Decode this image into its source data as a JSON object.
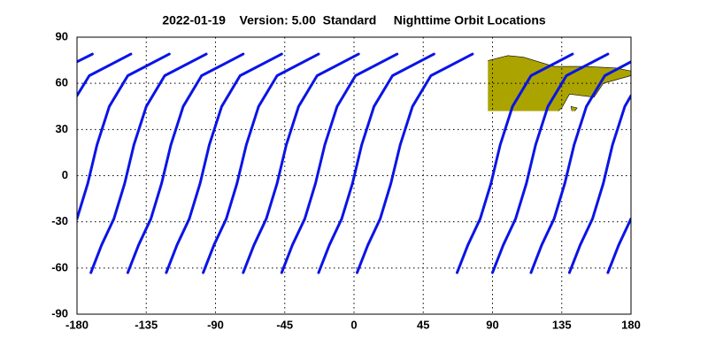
{
  "chart_data": {
    "type": "map",
    "title": "2022-01-19    Version: 5.00  Standard     Nighttime Orbit Locations",
    "xlim": [
      -180,
      180
    ],
    "ylim": [
      -90,
      90
    ],
    "xticks": [
      -180,
      -135,
      -90,
      -45,
      0,
      45,
      90,
      135,
      180
    ],
    "yticks": [
      -90,
      -60,
      -30,
      0,
      30,
      60,
      90
    ],
    "grid": true,
    "track_color": "#0a14e6",
    "land_color": "#aba400",
    "tracks": [
      {
        "x": [
          -171,
          -164,
          -156,
          -149,
          -143,
          -135,
          -123,
          -96
        ],
        "y": [
          -63,
          -45,
          -28,
          -5,
          20,
          45,
          65,
          79
        ]
      },
      {
        "x": [
          -147,
          -140,
          -132,
          -125,
          -119,
          -111,
          -99,
          -72
        ],
        "y": [
          -63,
          -45,
          -28,
          -5,
          20,
          45,
          65,
          79
        ]
      },
      {
        "x": [
          -122,
          -115,
          -107,
          -100,
          -94,
          -86,
          -74,
          -47
        ],
        "y": [
          -63,
          -45,
          -28,
          -5,
          20,
          45,
          65,
          79
        ]
      },
      {
        "x": [
          -98,
          -91,
          -83,
          -76,
          -70,
          -62,
          -50,
          -23
        ],
        "y": [
          -63,
          -45,
          -28,
          -5,
          20,
          45,
          65,
          79
        ]
      },
      {
        "x": [
          -72,
          -65,
          -57,
          -50,
          -44,
          -36,
          -24,
          3
        ],
        "y": [
          -63,
          -45,
          -28,
          -5,
          20,
          45,
          65,
          79
        ]
      },
      {
        "x": [
          -47,
          -40,
          -32,
          -25,
          -19,
          -11,
          1,
          28
        ],
        "y": [
          -63,
          -45,
          -28,
          -5,
          20,
          45,
          65,
          79
        ]
      },
      {
        "x": [
          -23,
          -16,
          -8,
          -1,
          5,
          13,
          25,
          52
        ],
        "y": [
          -63,
          -45,
          -28,
          -5,
          20,
          45,
          65,
          79
        ]
      },
      {
        "x": [
          2,
          9,
          17,
          24,
          30,
          38,
          50,
          77
        ],
        "y": [
          -63,
          -45,
          -28,
          -5,
          20,
          45,
          65,
          79
        ]
      },
      {
        "x": [
          67,
          74,
          82,
          89,
          95,
          103,
          115,
          142
        ],
        "y": [
          -63,
          -45,
          -28,
          -5,
          20,
          45,
          65,
          79
        ]
      },
      {
        "x": [
          90,
          97,
          105,
          112,
          118,
          126,
          138,
          165
        ],
        "y": [
          -63,
          -45,
          -28,
          -5,
          20,
          45,
          65,
          79
        ]
      },
      {
        "x": [
          115,
          122,
          130,
          137,
          143,
          151,
          163,
          180
        ],
        "y": [
          -63,
          -45,
          -28,
          -5,
          20,
          45,
          65,
          74
        ]
      },
      {
        "x": [
          -180,
          -170
        ],
        "y": [
          74,
          79
        ]
      },
      {
        "x": [
          140,
          147,
          155,
          162,
          168,
          176,
          180
        ],
        "y": [
          -63,
          -45,
          -28,
          -5,
          20,
          45,
          52
        ]
      },
      {
        "x": [
          -180,
          -172,
          -145
        ],
        "y": [
          52,
          65,
          79
        ]
      },
      {
        "x": [
          165,
          172,
          180
        ],
        "y": [
          -63,
          -45,
          -28
        ]
      },
      {
        "x": [
          -180,
          -173,
          -167,
          -159,
          -147,
          -120
        ],
        "y": [
          -28,
          -5,
          20,
          45,
          65,
          79
        ]
      }
    ]
  }
}
